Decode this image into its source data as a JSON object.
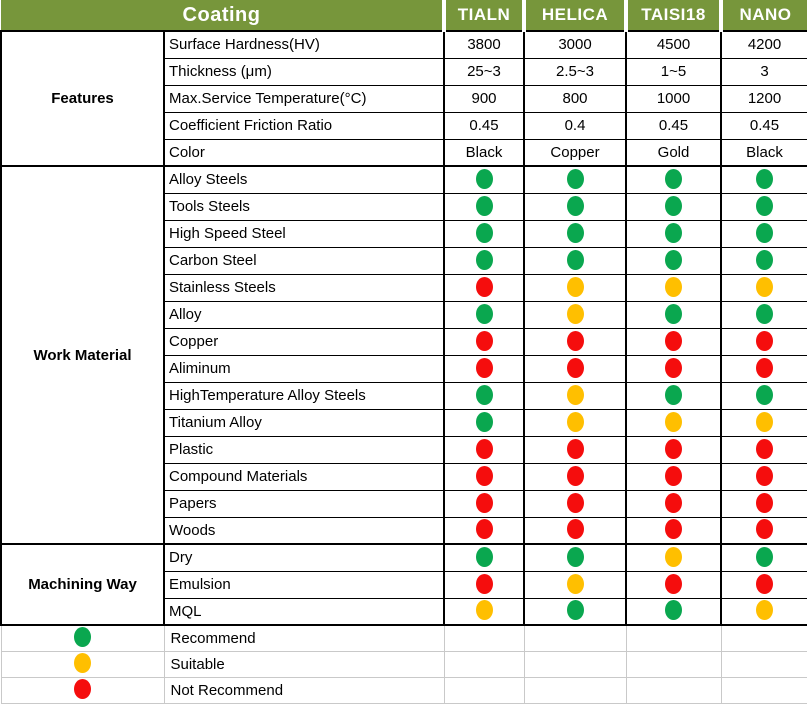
{
  "colors": {
    "header_bg": "#77963B",
    "recommend": "#0AA74F",
    "suitable": "#FFBF00",
    "not_recommend": "#F50D0D"
  },
  "chart_data": {
    "type": "table",
    "title": "Coating",
    "columns": [
      "TIALN",
      "HELICA",
      "TAISI18",
      "NANO"
    ],
    "sections": [
      {
        "name": "Features",
        "rows": [
          {
            "label": "Surface Hardness(HV)",
            "type": "text",
            "values": [
              "3800",
              "3000",
              "4500",
              "4200"
            ]
          },
          {
            "label": "Thickness (μm)",
            "type": "text",
            "values": [
              "25~3",
              "2.5~3",
              "1~5",
              "3"
            ]
          },
          {
            "label": "Max.Service Temperature(°C)",
            "type": "text",
            "values": [
              "900",
              "800",
              "1000",
              "1200"
            ]
          },
          {
            "label": "Coefficient Friction Ratio",
            "type": "text",
            "values": [
              "0.45",
              "0.4",
              "0.45",
              "0.45"
            ]
          },
          {
            "label": "Color",
            "type": "text",
            "values": [
              "Black",
              "Copper",
              "Gold",
              "Black"
            ]
          }
        ]
      },
      {
        "name": "Work Material",
        "rows": [
          {
            "label": "Alloy Steels",
            "type": "dots",
            "values": [
              "green",
              "green",
              "green",
              "green"
            ]
          },
          {
            "label": "Tools Steels",
            "type": "dots",
            "values": [
              "green",
              "green",
              "green",
              "green"
            ]
          },
          {
            "label": "High Speed Steel",
            "type": "dots",
            "values": [
              "green",
              "green",
              "green",
              "green"
            ]
          },
          {
            "label": "Carbon Steel",
            "type": "dots",
            "values": [
              "green",
              "green",
              "green",
              "green"
            ]
          },
          {
            "label": "Stainless Steels",
            "type": "dots",
            "values": [
              "red",
              "yellow",
              "yellow",
              "yellow"
            ]
          },
          {
            "label": "Alloy",
            "type": "dots",
            "values": [
              "green",
              "yellow",
              "green",
              "green"
            ]
          },
          {
            "label": "Copper",
            "type": "dots",
            "values": [
              "red",
              "red",
              "red",
              "red"
            ]
          },
          {
            "label": "Aliminum",
            "type": "dots",
            "values": [
              "red",
              "red",
              "red",
              "red"
            ]
          },
          {
            "label": "HighTemperature Alloy Steels",
            "type": "dots",
            "values": [
              "green",
              "yellow",
              "green",
              "green"
            ]
          },
          {
            "label": "Titanium Alloy",
            "type": "dots",
            "values": [
              "green",
              "yellow",
              "yellow",
              "yellow"
            ]
          },
          {
            "label": "Plastic",
            "type": "dots",
            "values": [
              "red",
              "red",
              "red",
              "red"
            ]
          },
          {
            "label": "Compound Materials",
            "type": "dots",
            "values": [
              "red",
              "red",
              "red",
              "red"
            ]
          },
          {
            "label": "Papers",
            "type": "dots",
            "values": [
              "red",
              "red",
              "red",
              "red"
            ]
          },
          {
            "label": "Woods",
            "type": "dots",
            "values": [
              "red",
              "red",
              "red",
              "red"
            ]
          }
        ]
      },
      {
        "name": "Machining Way",
        "rows": [
          {
            "label": "Dry",
            "type": "dots",
            "values": [
              "green",
              "green",
              "yellow",
              "green"
            ]
          },
          {
            "label": "Emulsion",
            "type": "dots",
            "values": [
              "red",
              "yellow",
              "red",
              "red"
            ]
          },
          {
            "label": "MQL",
            "type": "dots",
            "values": [
              "yellow",
              "green",
              "green",
              "yellow"
            ]
          }
        ]
      }
    ],
    "legend": [
      {
        "color": "green",
        "label": "Recommend"
      },
      {
        "color": "yellow",
        "label": "Suitable"
      },
      {
        "color": "red",
        "label": "Not Recommend"
      }
    ]
  }
}
